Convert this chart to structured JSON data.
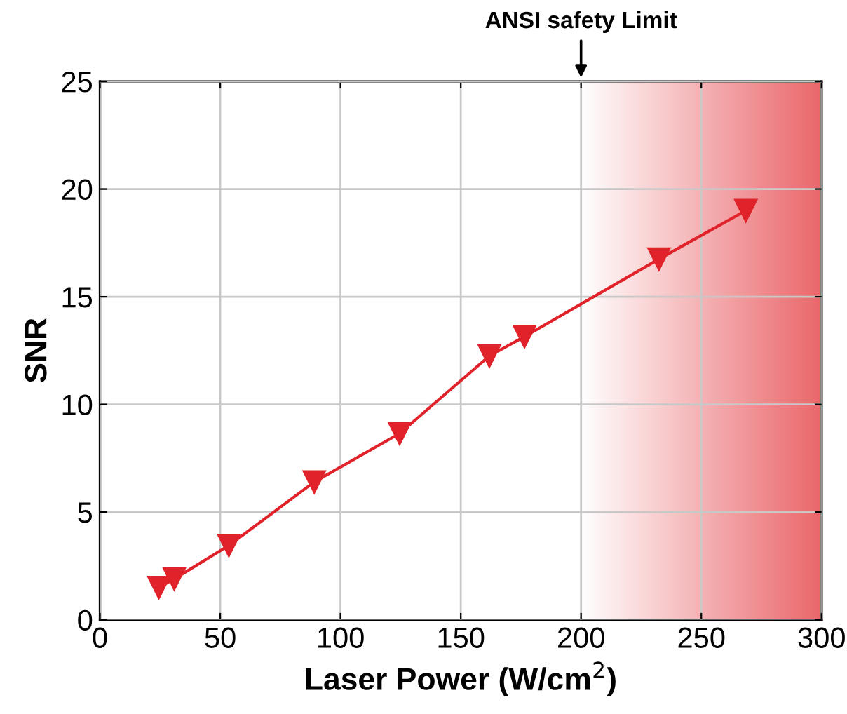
{
  "chart_data": {
    "type": "line",
    "xlabel": "Laser Power (W/cm$^{2}$)",
    "ylabel": "SNR",
    "x": [
      24.5,
      30.9,
      53.6,
      89.1,
      124.6,
      161.9,
      176.5,
      232.4,
      268.5
    ],
    "series": [
      {
        "color": "#e0222a",
        "values": [
          1.5,
          1.9,
          3.45,
          6.4,
          8.65,
          12.25,
          13.15,
          16.75,
          19.0
        ]
      }
    ],
    "xlim": [
      0,
      300
    ],
    "xticks": [
      0,
      50,
      100,
      150,
      200,
      250,
      300
    ],
    "ylim": [
      0,
      25
    ],
    "yticks": [
      0,
      5,
      10,
      15,
      20,
      25
    ],
    "grid": true,
    "marker": "triangle",
    "line_style": "solid",
    "bands": [
      {
        "axis": "x",
        "from": 200,
        "to": 300,
        "label": "ANSI safety Limit",
        "color": "#e8555a"
      }
    ]
  }
}
